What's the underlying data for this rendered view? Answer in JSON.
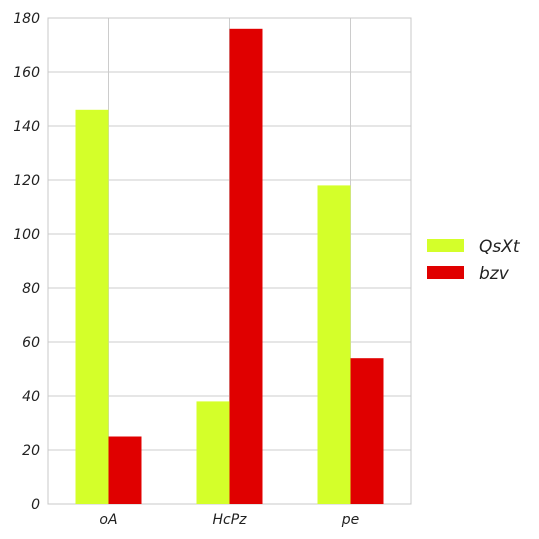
{
  "chart_data": {
    "type": "bar",
    "categories": [
      "oA",
      "HcPz",
      "pe"
    ],
    "series": [
      {
        "name": "QsXt",
        "color": "#d4ff2a",
        "values": [
          146,
          38,
          118
        ]
      },
      {
        "name": "bzv",
        "color": "#e00000",
        "values": [
          25,
          176,
          54
        ]
      }
    ],
    "title": "",
    "xlabel": "",
    "ylabel": "",
    "ylim": [
      0,
      180
    ],
    "yticks": [
      0,
      20,
      40,
      60,
      80,
      100,
      120,
      140,
      160,
      180
    ],
    "grid": true,
    "legend_position": "right"
  }
}
